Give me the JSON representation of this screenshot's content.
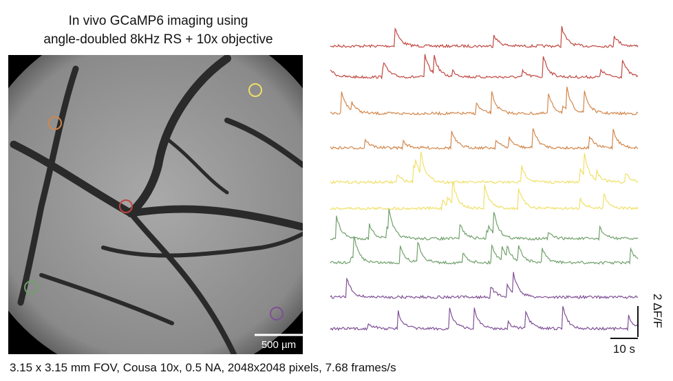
{
  "header": {
    "title_lines": [
      "In vivo GCaMP6 imaging using",
      "angle-doubled 8kHz RS + 10x objective"
    ]
  },
  "image": {
    "scale_bar_label": "500 µm"
  },
  "traces": {
    "colors": [
      "#c0463f",
      "#c0463f",
      "#d2864a",
      "#d2864a",
      "#efe067",
      "#efe067",
      "#6fa06a",
      "#6fa06a",
      "#7f4f95",
      "#7f4f95"
    ],
    "scale_y_label": "2 ΔF/F",
    "scale_x_label": "10 s"
  },
  "caption": "3.15 x 3.15 mm FOV, Cousa 10x, 0.5 NA, 2048x2048 pixels, 7.68 frames/s"
}
